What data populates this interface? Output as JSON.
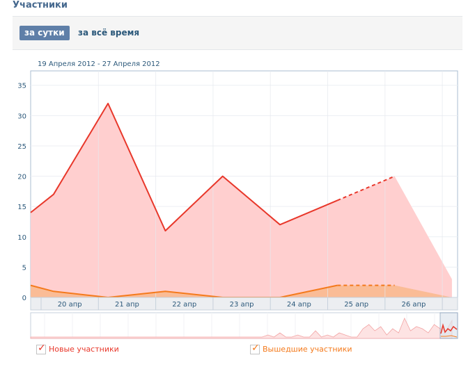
{
  "section": {
    "title": "Участники"
  },
  "filter": {
    "day_label": "за сутки",
    "all_time_label": "за всё время"
  },
  "date_range": "19 Апреля 2012 - 27 Апреля 2012",
  "colors": {
    "new": "#e8372a",
    "left": "#f47a1c",
    "new_fill": "#ffcfcf",
    "left_fill": "#f9b98c",
    "accent": "#5f7fa8"
  },
  "chart_data": {
    "type": "area",
    "title": "",
    "xlabel": "",
    "ylabel": "",
    "ylim": [
      0,
      36
    ],
    "yticks": [
      0,
      5,
      10,
      15,
      20,
      25,
      30,
      35
    ],
    "xlim": [
      "19 апр",
      "27 апр"
    ],
    "x_tick_labels": [
      "20 апр",
      "21 апр",
      "22 апр",
      "23 апр",
      "24 апр",
      "25 апр",
      "26 апр"
    ],
    "grid": true,
    "legend": "bottom",
    "series": [
      {
        "name": "Новые участники",
        "x": [
          0,
          0.4,
          1.35,
          2.35,
          3.35,
          4.35,
          5.35,
          6.35,
          7.35
        ],
        "values": [
          14,
          17,
          32,
          11,
          20,
          12,
          16,
          20,
          3
        ],
        "forecast_from_index": 7
      },
      {
        "name": "Вышедшие участники",
        "x": [
          0,
          0.4,
          1.35,
          2.35,
          3.35,
          4.35,
          5.35,
          6.35,
          7.35
        ],
        "values": [
          2,
          1,
          0,
          1,
          0,
          0,
          2,
          2,
          0
        ],
        "forecast_from_index": 7
      }
    ]
  }
}
